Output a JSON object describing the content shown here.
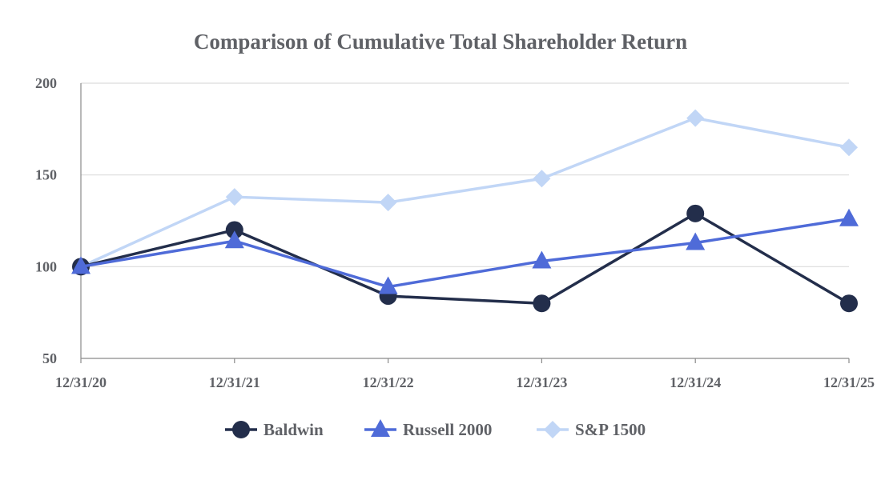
{
  "chart_data": {
    "type": "line",
    "title": "Comparison of Cumulative Total Shareholder Return",
    "xlabel": "",
    "ylabel": "",
    "categories": [
      "12/31/20",
      "12/31/21",
      "12/31/22",
      "12/31/23",
      "12/31/24",
      "12/31/25"
    ],
    "ylim": [
      50,
      200
    ],
    "yticks": [
      50,
      100,
      150,
      200
    ],
    "grid": true,
    "legend_position": "bottom",
    "series": [
      {
        "name": "Baldwin",
        "marker": "circle",
        "color": "#232e4b",
        "values": [
          100,
          120,
          84,
          80,
          129,
          80
        ]
      },
      {
        "name": "Russell 2000",
        "marker": "triangle",
        "color": "#4f6bd8",
        "values": [
          100,
          114,
          89,
          103,
          113,
          126
        ]
      },
      {
        "name": "S&P 1500",
        "marker": "diamond",
        "color": "#c1d6f6",
        "values": [
          100,
          138,
          135,
          148,
          181,
          165
        ]
      }
    ]
  }
}
